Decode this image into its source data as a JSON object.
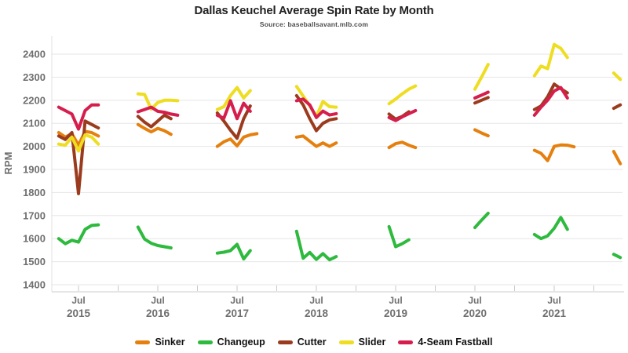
{
  "title": "Dallas Keuchel Average Spin Rate by Month",
  "subtitle": "Source: baseballsavant.mlb.com",
  "chart_data": {
    "type": "line",
    "title": "Dallas Keuchel Average Spin Rate by Month",
    "subtitle": "Source: baseballsavant.mlb.com",
    "xlabel": "",
    "ylabel": "RPM",
    "ylim": [
      1400,
      2400
    ],
    "ytick_step": 100,
    "grid": true,
    "legend_position": "bottom",
    "x_tick_month_label": "Jul",
    "x_tick_years": [
      "2015",
      "2016",
      "2017",
      "2018",
      "2019",
      "2020",
      "2021"
    ],
    "series": [
      {
        "name": "Sinker",
        "color": "#e5800f",
        "segments": [
          {
            "start": "2015-04",
            "values": [
              2060,
              2040,
              2055,
              2005,
              2065,
              2060,
              2045
            ]
          },
          {
            "start": "2016-04",
            "values": [
              2095,
              2078,
              2063,
              2078,
              2068,
              2052
            ]
          },
          {
            "start": "2017-04",
            "values": [
              2000,
              2020,
              2032,
              2002,
              2040,
              2050,
              2055
            ]
          },
          {
            "start": "2018-04",
            "values": [
              2040,
              2045,
              2022,
              2000,
              2015,
              2000,
              2015
            ]
          },
          {
            "start": "2019-06",
            "values": [
              1995,
              2012,
              2018,
              2005,
              1995
            ]
          },
          {
            "start": "2020-07",
            "values": [
              2072,
              2058,
              2046
            ]
          },
          {
            "start": "2021-04",
            "values": [
              1983,
              1970,
              1938,
              2000,
              2006,
              2005,
              1998
            ]
          },
          {
            "start": "2022-04",
            "values": [
              1978,
              1925
            ]
          }
        ]
      },
      {
        "name": "Changeup",
        "color": "#2eba3e",
        "segments": [
          {
            "start": "2015-04",
            "values": [
              1600,
              1578,
              1593,
              1585,
              1640,
              1657,
              1660
            ]
          },
          {
            "start": "2016-04",
            "values": [
              1650,
              1598,
              1580,
              1570,
              1565,
              1560
            ]
          },
          {
            "start": "2017-04",
            "values": [
              1537,
              1541,
              1548,
              1575,
              1512,
              1548
            ]
          },
          {
            "start": "2018-04",
            "values": [
              1632,
              1515,
              1540,
              1510,
              1535,
              1508,
              1522
            ]
          },
          {
            "start": "2019-06",
            "values": [
              1652,
              1565,
              1578,
              1595
            ]
          },
          {
            "start": "2020-07",
            "values": [
              1648,
              1680,
              1710
            ]
          },
          {
            "start": "2021-04",
            "values": [
              1618,
              1600,
              1612,
              1645,
              1692,
              1640
            ]
          },
          {
            "start": "2022-04",
            "values": [
              1532,
              1518
            ]
          }
        ]
      },
      {
        "name": "Cutter",
        "color": "#9b3b1e",
        "segments": [
          {
            "start": "2015-04",
            "values": [
              2045,
              2030,
              2060,
              1795,
              2110,
              2095,
              2080
            ]
          },
          {
            "start": "2016-04",
            "values": [
              2130,
              2105,
              2085,
              2110,
              2135,
              2120
            ]
          },
          {
            "start": "2017-04",
            "values": [
              2145,
              2110,
              2070,
              2035,
              2120,
              2175
            ]
          },
          {
            "start": "2018-04",
            "values": [
              2220,
              2180,
              2120,
              2068,
              2100,
              2115,
              2120
            ]
          },
          {
            "start": "2019-06",
            "values": [
              2140,
              2118,
              2130,
              2150
            ]
          },
          {
            "start": "2020-07",
            "values": [
              2188,
              2200,
              2212
            ]
          },
          {
            "start": "2021-04",
            "values": [
              2160,
              2175,
              2215,
              2270,
              2250,
              2232
            ]
          },
          {
            "start": "2022-04",
            "values": [
              2165,
              2180
            ]
          }
        ]
      },
      {
        "name": "Slider",
        "color": "#eedd21",
        "segments": [
          {
            "start": "2015-04",
            "values": [
              2010,
              2005,
              2040,
              1980,
              2050,
              2040,
              2010
            ]
          },
          {
            "start": "2016-04",
            "values": [
              2228,
              2225,
              2162,
              2190,
              2200,
              2200,
              2198
            ]
          },
          {
            "start": "2017-04",
            "values": [
              2160,
              2172,
              2220,
              2255,
              2210,
              2242
            ]
          },
          {
            "start": "2018-04",
            "values": [
              2260,
              2218,
              2175,
              2130,
              2195,
              2172,
              2170
            ]
          },
          {
            "start": "2019-06",
            "values": [
              2185,
              2205,
              2228,
              2248,
              2262
            ]
          },
          {
            "start": "2020-07",
            "values": [
              2248,
              2300,
              2355
            ]
          },
          {
            "start": "2021-04",
            "values": [
              2306,
              2348,
              2337,
              2442,
              2425,
              2385
            ]
          },
          {
            "start": "2022-04",
            "values": [
              2318,
              2290
            ]
          }
        ]
      },
      {
        "name": "4-Seam Fastball",
        "color": "#d61e4d",
        "segments": [
          {
            "start": "2015-04",
            "values": [
              2170,
              2155,
              2140,
              2075,
              2155,
              2180,
              2180
            ]
          },
          {
            "start": "2016-04",
            "values": [
              2150,
              2160,
              2170,
              2152,
              2148,
              2140,
              2135
            ]
          },
          {
            "start": "2017-04",
            "values": [
              2135,
              2122,
              2198,
              2120,
              2187,
              2152
            ]
          },
          {
            "start": "2018-04",
            "values": [
              2198,
              2205,
              2180,
              2125,
              2153,
              2136,
              2142
            ]
          },
          {
            "start": "2019-06",
            "values": [
              2125,
              2112,
              2128,
              2142,
              2155
            ]
          },
          {
            "start": "2020-07",
            "values": [
              2210,
              2222,
              2235
            ]
          },
          {
            "start": "2021-04",
            "values": [
              2135,
              2170,
              2200,
              2240,
              2255,
              2210
            ]
          }
        ]
      }
    ]
  }
}
